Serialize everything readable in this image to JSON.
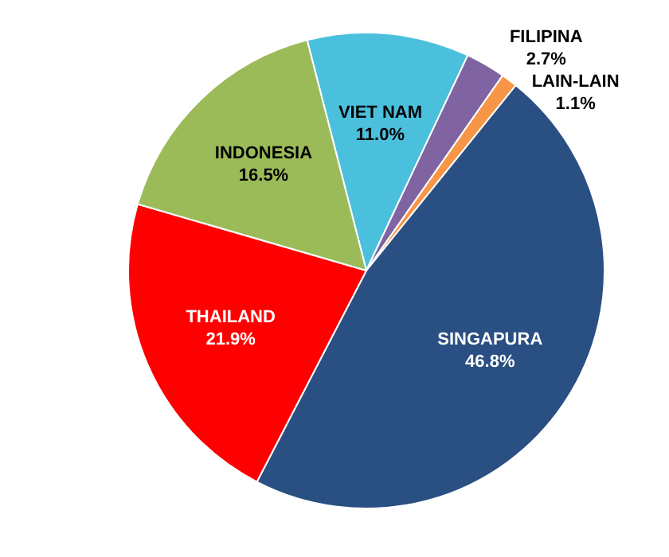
{
  "chart_data": {
    "type": "pie",
    "categories": [
      "VIET NAM",
      "FILIPINA",
      "LAIN-LAIN",
      "SINGAPURA",
      "THAILAND",
      "INDONESIA"
    ],
    "values": [
      11.0,
      2.7,
      1.1,
      46.8,
      21.9,
      16.5
    ],
    "colors": [
      "#4bc0dd",
      "#8064a2",
      "#f79646",
      "#2a4f82",
      "#ff0000",
      "#9bbb59"
    ],
    "value_labels": [
      "11.0%",
      "2.7%",
      "1.1%",
      "46.8%",
      "21.9%",
      "16.5%"
    ],
    "legend": false
  }
}
